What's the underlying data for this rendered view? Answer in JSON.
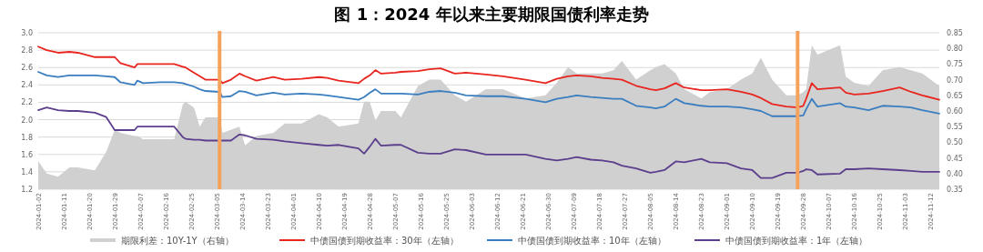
{
  "chart_data": {
    "type": "line",
    "title": "图 1：2024 年以来主要期限国债利率走势",
    "x": [
      "2024-01-02",
      "2024-01-05",
      "2024-01-09",
      "2024-01-13",
      "2024-01-16",
      "2024-01-22",
      "2024-01-26",
      "2024-01-29",
      "2024-01-31",
      "2024-02-05",
      "2024-02-06",
      "2024-02-08",
      "2024-02-14",
      "2024-02-19",
      "2024-02-22",
      "2024-02-23",
      "2024-02-26",
      "2024-02-28",
      "2024-03-01",
      "2024-03-06",
      "2024-03-07",
      "2024-03-10",
      "2024-03-13",
      "2024-03-15",
      "2024-03-19",
      "2024-03-25",
      "2024-03-29",
      "2024-04-04",
      "2024-04-10",
      "2024-04-13",
      "2024-04-17",
      "2024-04-24",
      "2024-04-26",
      "2024-04-28",
      "2024-04-30",
      "2024-05-02",
      "2024-05-07",
      "2024-05-09",
      "2024-05-15",
      "2024-05-19",
      "2024-05-23",
      "2024-05-28",
      "2024-06-01",
      "2024-06-08",
      "2024-06-14",
      "2024-06-22",
      "2024-06-29",
      "2024-07-03",
      "2024-07-07",
      "2024-07-10",
      "2024-07-15",
      "2024-07-19",
      "2024-07-23",
      "2024-07-26",
      "2024-07-31",
      "2024-08-05",
      "2024-08-07",
      "2024-08-10",
      "2024-08-14",
      "2024-08-17",
      "2024-08-23",
      "2024-08-26",
      "2024-09-01",
      "2024-09-06",
      "2024-09-10",
      "2024-09-13",
      "2024-09-17",
      "2024-09-22",
      "2024-09-26",
      "2024-09-28",
      "2024-09-29",
      "2024-10-01",
      "2024-10-03",
      "2024-10-11",
      "2024-10-13",
      "2024-10-16",
      "2024-10-21",
      "2024-10-26",
      "2024-11-01",
      "2024-11-05",
      "2024-11-09",
      "2024-11-15"
    ],
    "series": [
      {
        "name": "期限利差：10Y-1Y（右轴）",
        "type": "area",
        "axis": "y2",
        "color": "#d0d0d0",
        "values": [
          0.44,
          0.4,
          0.39,
          0.42,
          0.42,
          0.41,
          0.47,
          0.54,
          0.53,
          0.52,
          0.52,
          0.51,
          0.51,
          0.51,
          0.62,
          0.63,
          0.61,
          0.55,
          0.58,
          0.58,
          0.53,
          0.54,
          0.55,
          0.49,
          0.52,
          0.53,
          0.56,
          0.56,
          0.59,
          0.58,
          0.55,
          0.56,
          0.63,
          0.63,
          0.57,
          0.6,
          0.6,
          0.58,
          0.68,
          0.7,
          0.7,
          0.65,
          0.63,
          0.67,
          0.67,
          0.64,
          0.65,
          0.69,
          0.74,
          0.72,
          0.72,
          0.72,
          0.73,
          0.76,
          0.7,
          0.73,
          0.74,
          0.75,
          0.72,
          0.67,
          0.64,
          0.66,
          0.67,
          0.7,
          0.72,
          0.77,
          0.7,
          0.65,
          0.65,
          0.66,
          0.67,
          0.81,
          0.78,
          0.81,
          0.71,
          0.69,
          0.68,
          0.73,
          0.74,
          0.73,
          0.72,
          0.68
        ]
      },
      {
        "name": "中债国债到期收益率：30年（左轴）",
        "type": "line",
        "color": "#e8251e",
        "values": [
          2.84,
          2.8,
          2.77,
          2.78,
          2.77,
          2.72,
          2.72,
          2.72,
          2.65,
          2.6,
          2.64,
          2.64,
          2.64,
          2.64,
          2.61,
          2.6,
          2.54,
          2.5,
          2.46,
          2.46,
          2.42,
          2.46,
          2.53,
          2.5,
          2.45,
          2.49,
          2.46,
          2.47,
          2.49,
          2.48,
          2.45,
          2.42,
          2.47,
          2.51,
          2.57,
          2.53,
          2.54,
          2.55,
          2.56,
          2.58,
          2.59,
          2.53,
          2.54,
          2.52,
          2.5,
          2.46,
          2.42,
          2.47,
          2.5,
          2.51,
          2.5,
          2.48,
          2.47,
          2.46,
          2.39,
          2.35,
          2.34,
          2.36,
          2.42,
          2.37,
          2.34,
          2.34,
          2.35,
          2.32,
          2.29,
          2.25,
          2.18,
          2.15,
          2.14,
          2.16,
          2.24,
          2.42,
          2.35,
          2.37,
          2.31,
          2.29,
          2.3,
          2.33,
          2.37,
          2.32,
          2.28,
          2.23
        ]
      },
      {
        "name": "中债国债到期收益率：10年（左轴）",
        "type": "line",
        "color": "#3a7ebf",
        "values": [
          2.55,
          2.51,
          2.49,
          2.51,
          2.51,
          2.51,
          2.5,
          2.49,
          2.43,
          2.4,
          2.45,
          2.42,
          2.43,
          2.43,
          2.42,
          2.41,
          2.38,
          2.35,
          2.33,
          2.32,
          2.26,
          2.27,
          2.33,
          2.32,
          2.28,
          2.31,
          2.29,
          2.3,
          2.29,
          2.28,
          2.26,
          2.23,
          2.26,
          2.31,
          2.35,
          2.3,
          2.3,
          2.3,
          2.29,
          2.32,
          2.33,
          2.31,
          2.28,
          2.27,
          2.27,
          2.24,
          2.2,
          2.24,
          2.26,
          2.28,
          2.26,
          2.25,
          2.24,
          2.24,
          2.16,
          2.14,
          2.13,
          2.15,
          2.24,
          2.19,
          2.16,
          2.15,
          2.15,
          2.14,
          2.12,
          2.1,
          2.04,
          2.04,
          2.04,
          2.05,
          2.12,
          2.24,
          2.15,
          2.19,
          2.15,
          2.14,
          2.11,
          2.16,
          2.15,
          2.14,
          2.11,
          2.07
        ]
      },
      {
        "name": "中债国债到期收益率：1年（左轴）",
        "type": "line",
        "color": "#5b3f8c",
        "values": [
          2.11,
          2.14,
          2.11,
          2.1,
          2.1,
          2.08,
          2.03,
          1.88,
          1.88,
          1.88,
          1.92,
          1.92,
          1.92,
          1.92,
          1.8,
          1.78,
          1.77,
          1.77,
          1.76,
          1.76,
          1.76,
          1.76,
          1.83,
          1.82,
          1.78,
          1.77,
          1.75,
          1.73,
          1.71,
          1.7,
          1.71,
          1.67,
          1.61,
          1.69,
          1.78,
          1.7,
          1.71,
          1.71,
          1.62,
          1.61,
          1.61,
          1.66,
          1.65,
          1.6,
          1.6,
          1.6,
          1.55,
          1.53,
          1.55,
          1.57,
          1.54,
          1.53,
          1.51,
          1.47,
          1.44,
          1.39,
          1.4,
          1.42,
          1.52,
          1.51,
          1.55,
          1.51,
          1.5,
          1.44,
          1.42,
          1.33,
          1.33,
          1.39,
          1.39,
          1.41,
          1.43,
          1.42,
          1.37,
          1.38,
          1.43,
          1.43,
          1.44,
          1.43,
          1.42,
          1.41,
          1.4,
          1.4
        ]
      }
    ],
    "xlim": [
      "2024-01-02",
      "2024-11-15"
    ],
    "xticks": [
      "2024-01-02",
      "2024-01-11",
      "2024-01-20",
      "2024-01-29",
      "2024-02-07",
      "2024-02-16",
      "2024-02-25",
      "2024-03-05",
      "2024-03-14",
      "2024-03-23",
      "2024-04-01",
      "2024-04-10",
      "2024-04-19",
      "2024-04-28",
      "2024-05-07",
      "2024-05-16",
      "2024-05-25",
      "2024-06-03",
      "2024-06-12",
      "2024-06-21",
      "2024-06-30",
      "2024-07-09",
      "2024-07-18",
      "2024-07-27",
      "2024-08-05",
      "2024-08-14",
      "2024-08-23",
      "2024-09-01",
      "2024-09-10",
      "2024-09-19",
      "2024-09-28",
      "2024-10-07",
      "2024-10-16",
      "2024-10-25",
      "2024-11-03",
      "2024-11-12"
    ],
    "ylim": [
      1.2,
      3.0
    ],
    "yticks": [
      {
        "value": 1.2,
        "label": "1.2"
      },
      {
        "value": 1.4,
        "label": "1.4"
      },
      {
        "value": 1.6,
        "label": "1.6"
      },
      {
        "value": 1.8,
        "label": "1.8"
      },
      {
        "value": 2.0,
        "label": "2.0"
      },
      {
        "value": 2.2,
        "label": "2.2"
      },
      {
        "value": 2.4,
        "label": "2.4"
      },
      {
        "value": 2.6,
        "label": "2.6"
      },
      {
        "value": 2.8,
        "label": "2.8"
      },
      {
        "value": 3.0,
        "label": "3.0"
      }
    ],
    "y2lim": [
      0.35,
      0.85
    ],
    "y2ticks": [
      {
        "value": 0.35,
        "label": "0.35"
      },
      {
        "value": 0.4,
        "label": "0.40"
      },
      {
        "value": 0.45,
        "label": "0.45"
      },
      {
        "value": 0.5,
        "label": "0.50"
      },
      {
        "value": 0.55,
        "label": "0.55"
      },
      {
        "value": 0.6,
        "label": "0.60"
      },
      {
        "value": 0.65,
        "label": "0.65"
      },
      {
        "value": 0.7,
        "label": "0.70"
      },
      {
        "value": 0.75,
        "label": "0.75"
      },
      {
        "value": 0.8,
        "label": "0.80"
      },
      {
        "value": 0.85,
        "label": "0.85"
      }
    ],
    "grid": "y",
    "legend": "bottom",
    "ref_lines": [
      {
        "axis": "x",
        "value": "2024-03-06",
        "color": "#f5a35c"
      },
      {
        "axis": "x",
        "value": "2024-09-26",
        "color": "#f5a35c"
      }
    ]
  }
}
